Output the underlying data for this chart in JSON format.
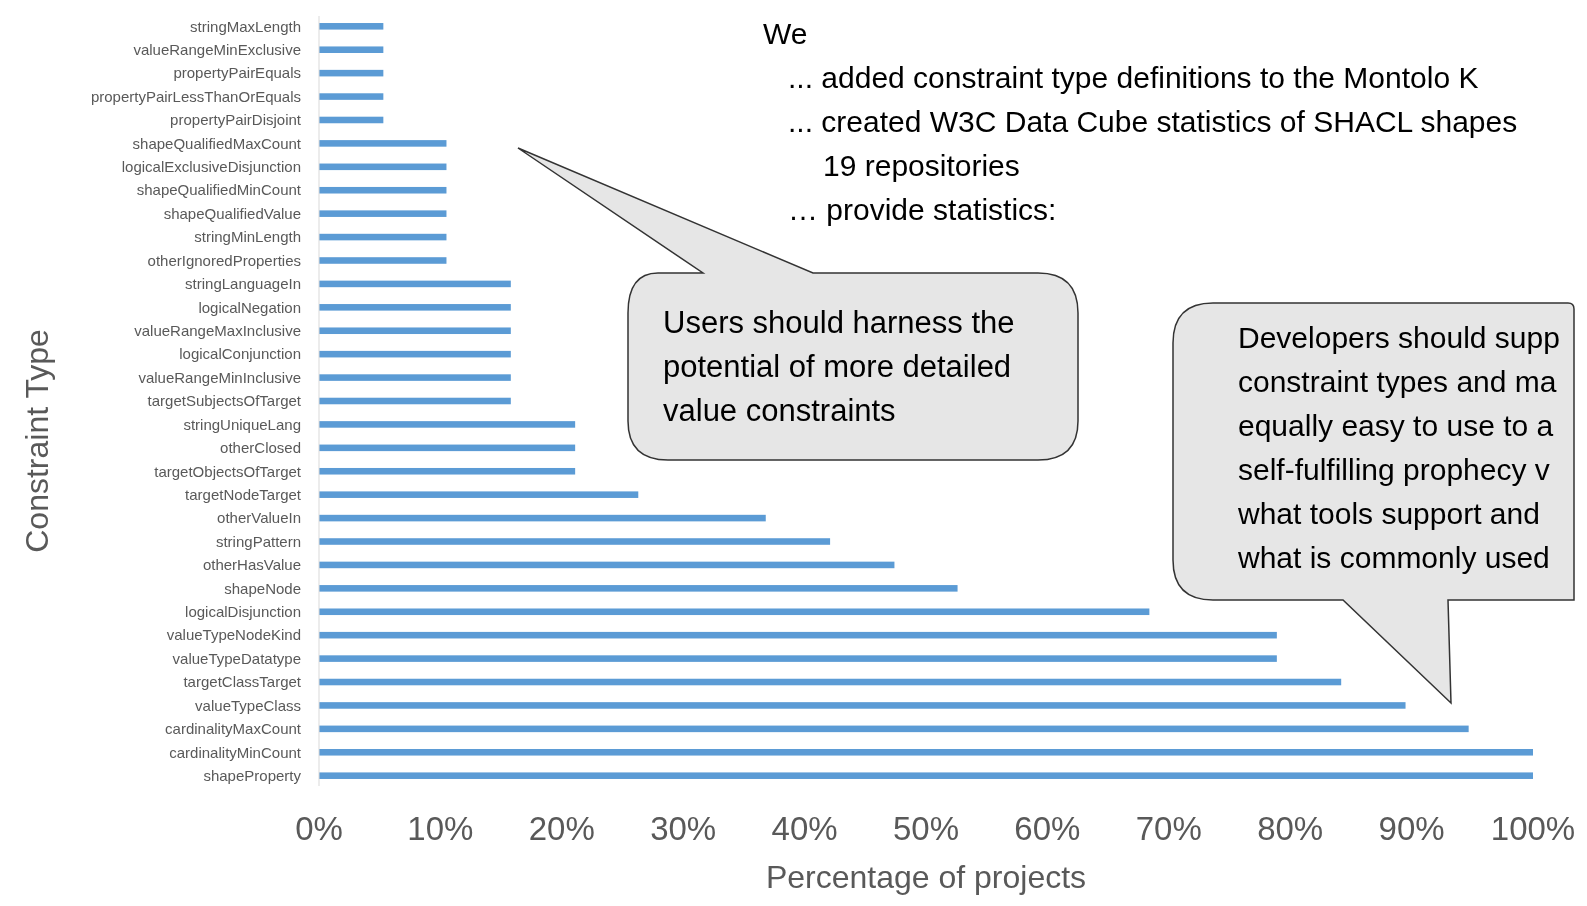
{
  "chart_data": {
    "type": "bar",
    "orientation": "horizontal",
    "xlabel": "Percentage of projects",
    "ylabel": "Constraint Type",
    "categories": [
      "stringMaxLength",
      "valueRangeMinExclusive",
      "propertyPairEquals",
      "propertyPairLessThanOrEquals",
      "propertyPairDisjoint",
      "shapeQualifiedMaxCount",
      "logicalExclusiveDisjunction",
      "shapeQualifiedMinCount",
      "shapeQualifiedValue",
      "stringMinLength",
      "otherIgnoredProperties",
      "stringLanguageIn",
      "logicalNegation",
      "valueRangeMaxInclusive",
      "logicalConjunction",
      "valueRangeMinInclusive",
      "targetSubjectsOfTarget",
      "stringUniqueLang",
      "otherClosed",
      "targetObjectsOfTarget",
      "targetNodeTarget",
      "otherValueIn",
      "stringPattern",
      "otherHasValue",
      "shapeNode",
      "logicalDisjunction",
      "valueTypeNodeKind",
      "valueTypeDatatype",
      "targetClassTarget",
      "valueTypeClass",
      "cardinalityMaxCount",
      "cardinalityMinCount",
      "shapeProperty"
    ],
    "values": [
      5.3,
      5.3,
      5.3,
      5.3,
      5.3,
      10.5,
      10.5,
      10.5,
      10.5,
      10.5,
      10.5,
      15.8,
      15.8,
      15.8,
      15.8,
      15.8,
      15.8,
      21.1,
      21.1,
      21.1,
      26.3,
      36.8,
      42.1,
      47.4,
      52.6,
      68.4,
      78.9,
      78.9,
      84.2,
      89.5,
      94.7,
      100,
      100
    ],
    "color": "#5b9bd5",
    "xlim": [
      0,
      100
    ],
    "xticks": [
      {
        "value": 0,
        "label": "0%"
      },
      {
        "value": 10,
        "label": "10%"
      },
      {
        "value": 20,
        "label": "20%"
      },
      {
        "value": 30,
        "label": "30%"
      },
      {
        "value": 40,
        "label": "40%"
      },
      {
        "value": 50,
        "label": "50%"
      },
      {
        "value": 60,
        "label": "60%"
      },
      {
        "value": 70,
        "label": "70%"
      },
      {
        "value": 80,
        "label": "80%"
      },
      {
        "value": 90,
        "label": "90%"
      },
      {
        "value": 100,
        "label": "100%"
      }
    ],
    "annotations": [
      "We\n... added constraint type definitions to the Montolo K\n... created W3C Data Cube statistics of SHACL shapes\n19 repositories\n… provide statistics:",
      "Users should harness the\npotential of more detailed\nvalue constraints",
      "Developers should supp\nconstraint types and ma\nequally easy to use to a\nself-fulfilling prophecy v\nwhat tools support and\nwhat is commonly used"
    ]
  }
}
